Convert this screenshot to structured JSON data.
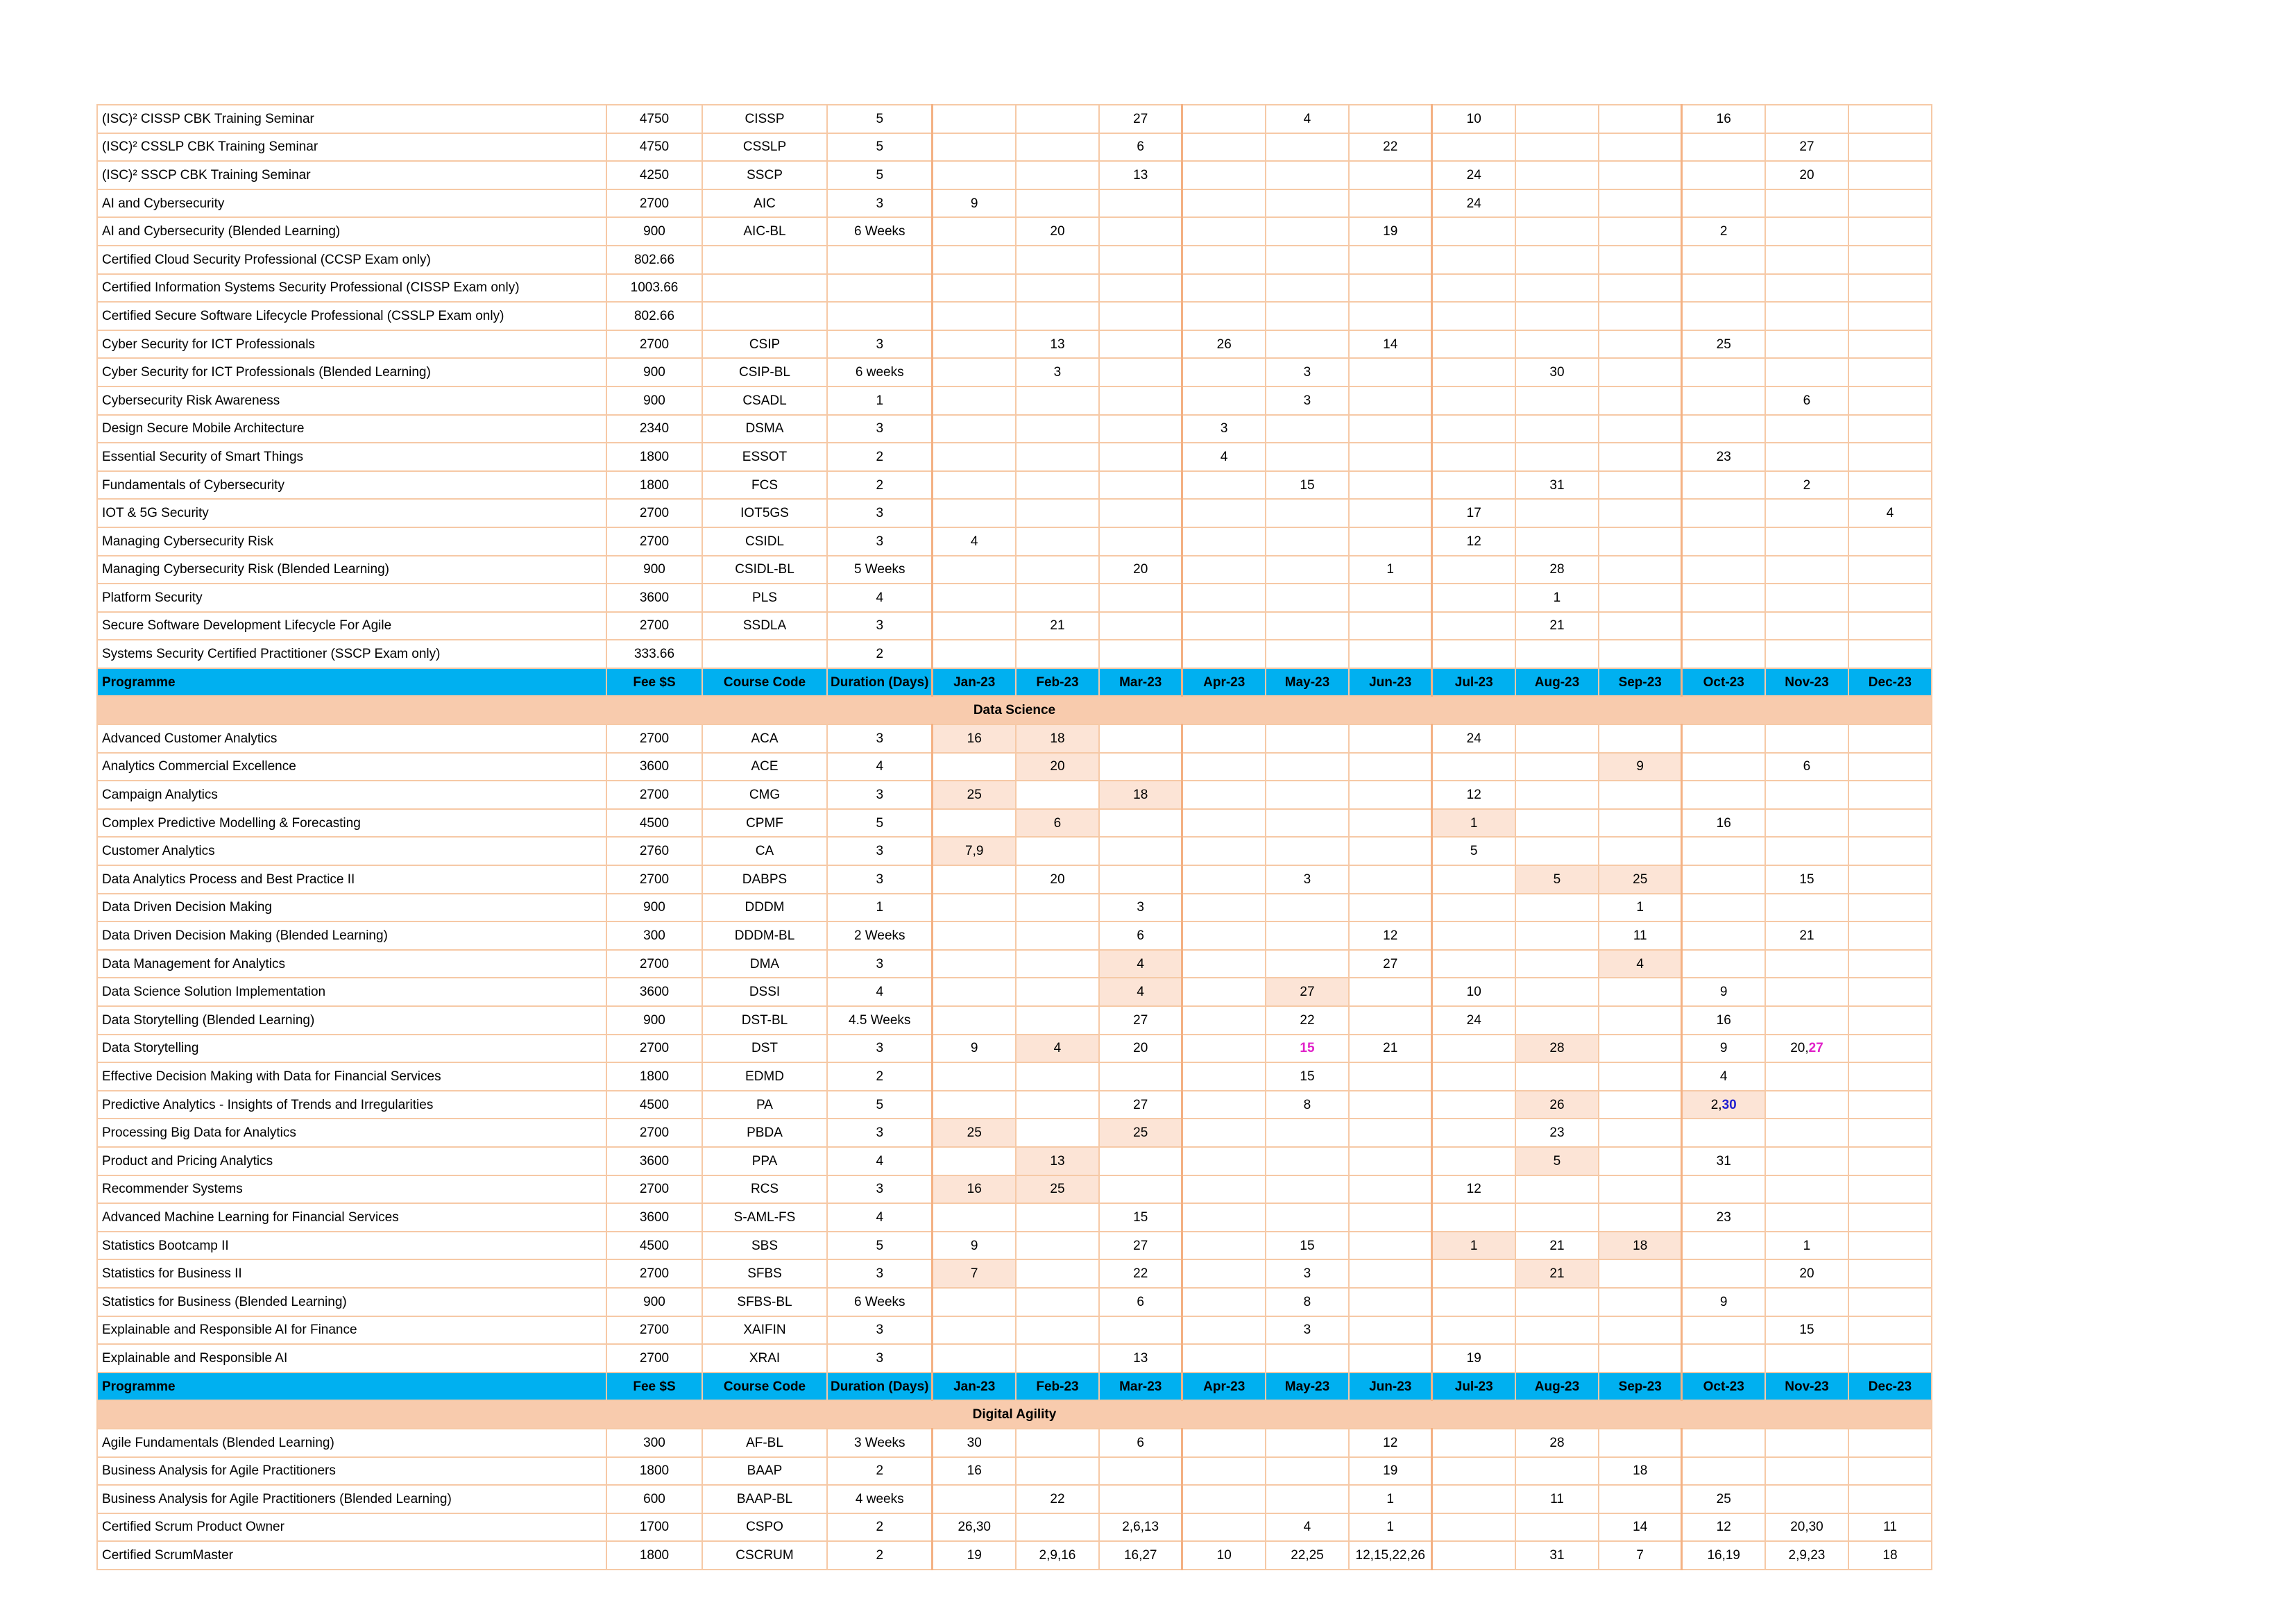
{
  "columns": [
    "Programme",
    "Fee $S",
    "Course Code",
    "Duration (Days)",
    "Jan-23",
    "Feb-23",
    "Mar-23",
    "Apr-23",
    "May-23",
    "Jun-23",
    "Jul-23",
    "Aug-23",
    "Sep-23",
    "Oct-23",
    "Nov-23",
    "Dec-23"
  ],
  "rows": [
    {
      "type": "course",
      "cells": [
        "(ISC)² CISSP CBK Training Seminar",
        "4750",
        "CISSP",
        "5",
        "",
        "",
        "27",
        "",
        "4",
        "",
        "10",
        "",
        "",
        "16",
        "",
        ""
      ]
    },
    {
      "type": "course",
      "cells": [
        "(ISC)² CSSLP CBK Training Seminar",
        "4750",
        "CSSLP",
        "5",
        "",
        "",
        "6",
        "",
        "",
        "22",
        "",
        "",
        "",
        "",
        "27",
        ""
      ]
    },
    {
      "type": "course",
      "cells": [
        "(ISC)²  SSCP CBK Training Seminar",
        "4250",
        "SSCP",
        "5",
        "",
        "",
        "13",
        "",
        "",
        "",
        "24",
        "",
        "",
        "",
        "20",
        ""
      ]
    },
    {
      "type": "course",
      "cells": [
        "AI and Cybersecurity",
        "2700",
        "AIC",
        "3",
        "9",
        "",
        "",
        "",
        "",
        "",
        "24",
        "",
        "",
        "",
        "",
        ""
      ]
    },
    {
      "type": "course",
      "cells": [
        "AI and Cybersecurity (Blended Learning)",
        "900",
        "AIC-BL",
        "6 Weeks",
        "",
        "20",
        "",
        "",
        "",
        "19",
        "",
        "",
        "",
        "2",
        "",
        ""
      ]
    },
    {
      "type": "course",
      "cells": [
        "Certified Cloud Security Professional (CCSP Exam only)",
        "802.66",
        "",
        "",
        "",
        "",
        "",
        "",
        "",
        "",
        "",
        "",
        "",
        "",
        "",
        ""
      ]
    },
    {
      "type": "course",
      "cells": [
        "Certified Information Systems Security Professional (CISSP Exam only)",
        "1003.66",
        "",
        "",
        "",
        "",
        "",
        "",
        "",
        "",
        "",
        "",
        "",
        "",
        "",
        ""
      ]
    },
    {
      "type": "course",
      "cells": [
        "Certified Secure Software Lifecycle Professional (CSSLP Exam only)",
        "802.66",
        "",
        "",
        "",
        "",
        "",
        "",
        "",
        "",
        "",
        "",
        "",
        "",
        "",
        ""
      ]
    },
    {
      "type": "course",
      "cells": [
        "Cyber Security for ICT Professionals",
        "2700",
        "CSIP",
        "3",
        "",
        "13",
        "",
        "26",
        "",
        "14",
        "",
        "",
        "",
        "25",
        "",
        ""
      ]
    },
    {
      "type": "course",
      "cells": [
        "Cyber Security for ICT Professionals (Blended Learning)",
        "900",
        "CSIP-BL",
        "6 weeks",
        "",
        "3",
        "",
        "",
        "3",
        "",
        "",
        "30",
        "",
        "",
        "",
        ""
      ]
    },
    {
      "type": "course",
      "cells": [
        "Cybersecurity Risk Awareness",
        "900",
        "CSADL",
        "1",
        "",
        "",
        "",
        "",
        "3",
        "",
        "",
        "",
        "",
        "",
        "6",
        ""
      ]
    },
    {
      "type": "course",
      "cells": [
        "Design Secure Mobile Architecture",
        "2340",
        "DSMA",
        "3",
        "",
        "",
        "",
        "3",
        "",
        "",
        "",
        "",
        "",
        "",
        "",
        ""
      ]
    },
    {
      "type": "course",
      "cells": [
        "Essential Security of Smart Things",
        "1800",
        "ESSOT",
        "2",
        "",
        "",
        "",
        "4",
        "",
        "",
        "",
        "",
        "",
        "23",
        "",
        ""
      ]
    },
    {
      "type": "course",
      "cells": [
        "Fundamentals of Cybersecurity",
        "1800",
        "FCS",
        "2",
        "",
        "",
        "",
        "",
        "15",
        "",
        "",
        "31",
        "",
        "",
        "2",
        ""
      ]
    },
    {
      "type": "course",
      "cells": [
        "IOT & 5G Security",
        "2700",
        "IOT5GS",
        "3",
        "",
        "",
        "",
        "",
        "",
        "",
        "17",
        "",
        "",
        "",
        "",
        "4"
      ]
    },
    {
      "type": "course",
      "cells": [
        "Managing Cybersecurity Risk",
        "2700",
        "CSIDL",
        "3",
        "4",
        "",
        "",
        "",
        "",
        "",
        "12",
        "",
        "",
        "",
        "",
        ""
      ]
    },
    {
      "type": "course",
      "cells": [
        "Managing Cybersecurity Risk (Blended Learning)",
        "900",
        "CSIDL-BL",
        "5 Weeks",
        "",
        "",
        "20",
        "",
        "",
        "1",
        "",
        "28",
        "",
        "",
        "",
        ""
      ]
    },
    {
      "type": "course",
      "cells": [
        "Platform Security",
        "3600",
        "PLS",
        "4",
        "",
        "",
        "",
        "",
        "",
        "",
        "",
        "1",
        "",
        "",
        "",
        ""
      ]
    },
    {
      "type": "course",
      "cells": [
        "Secure Software Development Lifecycle For Agile",
        "2700",
        "SSDLA",
        "3",
        "",
        "21",
        "",
        "",
        "",
        "",
        "",
        "21",
        "",
        "",
        "",
        ""
      ]
    },
    {
      "type": "course",
      "cells": [
        "Systems Security Certified Practitioner (SSCP Exam only)",
        "333.66",
        "",
        "2",
        "",
        "",
        "",
        "",
        "",
        "",
        "",
        "",
        "",
        "",
        "",
        ""
      ]
    },
    {
      "type": "header"
    },
    {
      "type": "section",
      "title": "Data Science"
    },
    {
      "type": "course",
      "cells": [
        "Advanced Customer Analytics",
        "2700",
        "ACA",
        "3",
        "16",
        "18",
        "",
        "",
        "",
        "",
        "24",
        "",
        "",
        "",
        "",
        ""
      ],
      "hl": [
        4,
        5
      ]
    },
    {
      "type": "course",
      "cells": [
        "Analytics Commercial Excellence",
        "3600",
        "ACE",
        "4",
        "",
        "20",
        "",
        "",
        "",
        "",
        "",
        "",
        "9",
        "",
        "6",
        ""
      ],
      "hl": [
        5,
        12
      ]
    },
    {
      "type": "course",
      "cells": [
        "Campaign Analytics",
        "2700",
        "CMG",
        "3",
        "25",
        "",
        "18",
        "",
        "",
        "",
        "12",
        "",
        "",
        "",
        "",
        ""
      ],
      "hl": [
        4,
        6
      ]
    },
    {
      "type": "course",
      "cells": [
        "Complex Predictive Modelling & Forecasting",
        "4500",
        "CPMF",
        "5",
        "",
        "6",
        "",
        "",
        "",
        "",
        "1",
        "",
        "",
        "16",
        "",
        ""
      ],
      "hl": [
        5,
        10
      ]
    },
    {
      "type": "course",
      "cells": [
        "Customer Analytics",
        "2760",
        "CA",
        "3",
        "7,9",
        "",
        "",
        "",
        "",
        "",
        "5",
        "",
        "",
        "",
        "",
        ""
      ],
      "hl": [
        4
      ]
    },
    {
      "type": "course",
      "cells": [
        "Data Analytics Process and Best Practice II",
        "2700",
        "DABPS",
        "3",
        "",
        "20",
        "",
        "",
        "3",
        "",
        "",
        "5",
        "25",
        "",
        "15",
        ""
      ],
      "hl": [
        11,
        12
      ]
    },
    {
      "type": "course",
      "cells": [
        "Data Driven Decision Making",
        "900",
        "DDDM",
        "1",
        "",
        "",
        "3",
        "",
        "",
        "",
        "",
        "",
        "1",
        "",
        "",
        ""
      ]
    },
    {
      "type": "course",
      "cells": [
        "Data Driven Decision Making (Blended Learning)",
        "300",
        "DDDM-BL",
        "2 Weeks",
        "",
        "",
        "6",
        "",
        "",
        "12",
        "",
        "",
        "11",
        "",
        "21",
        ""
      ]
    },
    {
      "type": "course",
      "cells": [
        "Data Management for Analytics",
        "2700",
        "DMA",
        "3",
        "",
        "",
        "4",
        "",
        "",
        "27",
        "",
        "",
        "4",
        "",
        "",
        ""
      ],
      "hl": [
        6,
        12
      ]
    },
    {
      "type": "course",
      "cells": [
        "Data Science Solution Implementation",
        "3600",
        "DSSI",
        "4",
        "",
        "",
        "4",
        "",
        "27",
        "",
        "10",
        "",
        "",
        "9",
        "",
        ""
      ],
      "hl": [
        6,
        8
      ]
    },
    {
      "type": "course",
      "cells": [
        "Data Storytelling (Blended Learning)",
        "900",
        "DST-BL",
        "4.5 Weeks",
        "",
        "",
        "27",
        "",
        "22",
        "",
        "24",
        "",
        "",
        "16",
        "",
        ""
      ]
    },
    {
      "type": "course",
      "cells": [
        "Data Storytelling",
        "2700",
        "DST",
        "3",
        "9",
        "4",
        "20",
        "",
        "15",
        "21",
        "",
        "28",
        "",
        "9",
        "20,27",
        ""
      ],
      "hl": [
        5,
        11
      ],
      "special": {
        "8": "pink",
        "14": "pink-tail"
      }
    },
    {
      "type": "course",
      "cells": [
        "Effective Decision Making with Data for Financial Services",
        "1800",
        "EDMD",
        "2",
        "",
        "",
        "",
        "",
        "15",
        "",
        "",
        "",
        "",
        "4",
        "",
        ""
      ]
    },
    {
      "type": "course",
      "cells": [
        "Predictive Analytics - Insights of Trends and Irregularities",
        "4500",
        "PA",
        "5",
        "",
        "",
        "27",
        "",
        "8",
        "",
        "",
        "26",
        "",
        "2,30",
        "",
        ""
      ],
      "hl": [
        11,
        13
      ],
      "special": {
        "13": "blue-tail"
      }
    },
    {
      "type": "course",
      "cells": [
        "Processing Big Data for Analytics",
        "2700",
        "PBDA",
        "3",
        "25",
        "",
        "25",
        "",
        "",
        "",
        "",
        "23",
        "",
        "",
        "",
        ""
      ],
      "hl": [
        4,
        6
      ]
    },
    {
      "type": "course",
      "cells": [
        "Product and Pricing Analytics",
        "3600",
        "PPA",
        "4",
        "",
        "13",
        "",
        "",
        "",
        "",
        "",
        "5",
        "",
        "31",
        "",
        ""
      ],
      "hl": [
        5,
        11
      ]
    },
    {
      "type": "course",
      "cells": [
        "Recommender Systems",
        "2700",
        "RCS",
        "3",
        "16",
        "25",
        "",
        "",
        "",
        "",
        "12",
        "",
        "",
        "",
        "",
        ""
      ],
      "hl": [
        4,
        5
      ]
    },
    {
      "type": "course",
      "cells": [
        "Advanced Machine Learning for Financial Services",
        "3600",
        "S-AML-FS",
        "4",
        "",
        "",
        "15",
        "",
        "",
        "",
        "",
        "",
        "",
        "23",
        "",
        ""
      ]
    },
    {
      "type": "course",
      "cells": [
        "Statistics Bootcamp II",
        "4500",
        "SBS",
        "5",
        "9",
        "",
        "27",
        "",
        "15",
        "",
        "1",
        "21",
        "18",
        "",
        "1",
        ""
      ],
      "hl": [
        10,
        12
      ]
    },
    {
      "type": "course",
      "cells": [
        "Statistics for Business II",
        "2700",
        "SFBS",
        "3",
        "7",
        "",
        "22",
        "",
        "3",
        "",
        "",
        "21",
        "",
        "",
        "20",
        ""
      ],
      "hl": [
        4,
        11
      ]
    },
    {
      "type": "course",
      "cells": [
        "Statistics for Business (Blended Learning)",
        "900",
        "SFBS-BL",
        "6 Weeks",
        "",
        "",
        "6",
        "",
        "8",
        "",
        "",
        "",
        "",
        "9",
        "",
        ""
      ]
    },
    {
      "type": "course",
      "cells": [
        "Explainable and Responsible AI for Finance",
        "2700",
        "XAIFIN",
        "3",
        "",
        "",
        "",
        "",
        "3",
        "",
        "",
        "",
        "",
        "",
        "15",
        ""
      ]
    },
    {
      "type": "course",
      "cells": [
        "Explainable and Responsible AI",
        "2700",
        "XRAI",
        "3",
        "",
        "",
        "13",
        "",
        "",
        "",
        "19",
        "",
        "",
        "",
        "",
        ""
      ]
    },
    {
      "type": "header"
    },
    {
      "type": "section",
      "title": "Digital Agility"
    },
    {
      "type": "course",
      "cells": [
        "Agile Fundamentals (Blended Learning)",
        "300",
        "AF-BL",
        "3 Weeks",
        "30",
        "",
        "6",
        "",
        "",
        "12",
        "",
        "28",
        "",
        "",
        "",
        ""
      ]
    },
    {
      "type": "course",
      "cells": [
        "Business Analysis for Agile Practitioners",
        "1800",
        "BAAP",
        "2",
        "16",
        "",
        "",
        "",
        "",
        "19",
        "",
        "",
        "18",
        "",
        "",
        ""
      ]
    },
    {
      "type": "course",
      "cells": [
        "Business Analysis for Agile Practitioners (Blended Learning)",
        "600",
        "BAAP-BL",
        "4 weeks",
        "",
        "22",
        "",
        "",
        "",
        "1",
        "",
        "11",
        "",
        "25",
        "",
        ""
      ]
    },
    {
      "type": "course",
      "cells": [
        "Certified Scrum Product Owner",
        "1700",
        "CSPO",
        "2",
        "26,30",
        "",
        "2,6,13",
        "",
        "4",
        "1",
        "",
        "",
        "14",
        "12",
        "20,30",
        "11"
      ]
    },
    {
      "type": "course",
      "cells": [
        "Certified ScrumMaster",
        "1800",
        "CSCRUM",
        "2",
        "19",
        "2,9,16",
        "16,27",
        "10",
        "22,25",
        "12,15,22,26",
        "",
        "31",
        "7",
        "16,19",
        "2,9,23",
        "18"
      ]
    }
  ]
}
